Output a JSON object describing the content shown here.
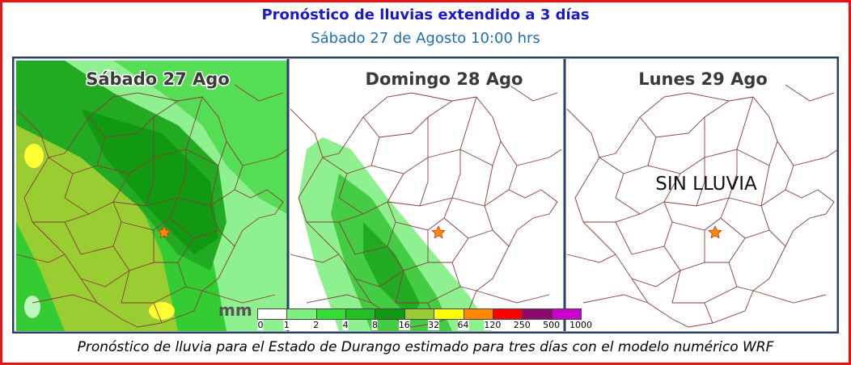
{
  "header": {
    "title": "Pronóstico de lluvias extendido a 3 días",
    "subtitle": "Sábado 27 de Agosto 10:00 hrs"
  },
  "panels": [
    {
      "title": "Sábado 27 Ago"
    },
    {
      "title": "Domingo 28 Ago"
    },
    {
      "title": "Lunes 29 Ago",
      "note": "SIN LLUVIA"
    }
  ],
  "legend": {
    "unit": "mm",
    "ticks": [
      0,
      1,
      2,
      4,
      8,
      16,
      32,
      64,
      120,
      250,
      500,
      1000
    ]
  },
  "footer": {
    "caption": "Pronóstico de lluvia para el Estado de Durango estimado para tres días con el modelo numérico WRF"
  }
}
